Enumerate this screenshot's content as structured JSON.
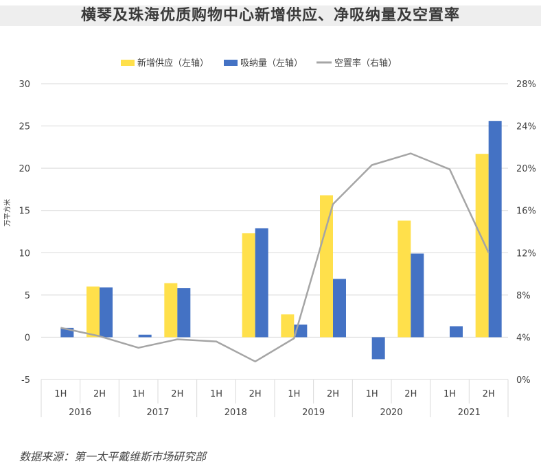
{
  "header": {
    "title": "横琴及珠海优质购物中心新增供应、净吸纳量及空置率"
  },
  "footer": {
    "source": "数据来源：第一太平戴维斯市场研究部"
  },
  "chart_data": {
    "type": "bar",
    "years": [
      "2016",
      "2017",
      "2018",
      "2019",
      "2020",
      "2021"
    ],
    "halves": [
      "1H",
      "2H"
    ],
    "categories": [
      "2016 1H",
      "2016 2H",
      "2017 1H",
      "2017 2H",
      "2018 1H",
      "2018 2H",
      "2019 1H",
      "2019 2H",
      "2020 1H",
      "2020 2H",
      "2021 1H",
      "2021 2H"
    ],
    "ylabel": "万平方米",
    "ylim": [
      -5,
      30
    ],
    "yticks": [
      "-5",
      "0",
      "5",
      "10",
      "15",
      "20",
      "25",
      "30"
    ],
    "y2lim": [
      0,
      28
    ],
    "y2ticks": [
      "0%",
      "4%",
      "8%",
      "12%",
      "16%",
      "20%",
      "24%",
      "28%"
    ],
    "legend_position": "top",
    "grid": true,
    "series": [
      {
        "name": "新增供应（左轴）",
        "type": "bar",
        "axis": "left",
        "color": "#FFE04B",
        "values": [
          0,
          6.0,
          0,
          6.4,
          0,
          12.3,
          2.7,
          16.8,
          0,
          13.8,
          0,
          21.7
        ]
      },
      {
        "name": "吸纳量（左轴）",
        "type": "bar",
        "axis": "left",
        "color": "#4472C4",
        "values": [
          1.1,
          5.9,
          0.3,
          5.8,
          0,
          12.9,
          1.5,
          6.9,
          -2.6,
          9.9,
          1.3,
          25.6
        ]
      },
      {
        "name": "空置率（右轴）",
        "type": "line",
        "axis": "right",
        "color": "#A5A5A5",
        "values": [
          4.9,
          4.1,
          3.0,
          3.8,
          3.6,
          1.7,
          3.9,
          16.6,
          20.3,
          21.4,
          19.9,
          12.0
        ]
      }
    ]
  }
}
